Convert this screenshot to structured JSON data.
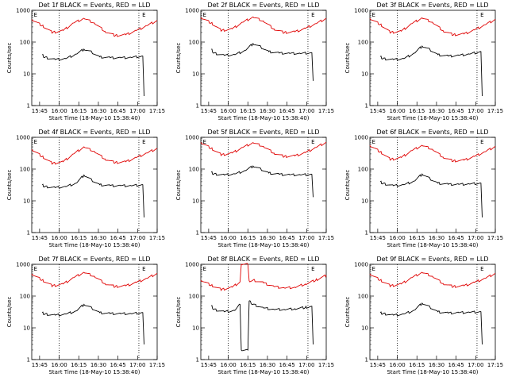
{
  "chart_data": [
    {
      "type": "line",
      "title": "Det 1f BLACK = Events, RED = LLD",
      "xlabel": "Start Time (18-May-10 15:38:40)",
      "ylabel": "Counts/sec",
      "yscale": "log",
      "ylim": [
        1,
        1000
      ],
      "xticks": [
        "15:45",
        "16:00",
        "16:15",
        "16:30",
        "16:45",
        "17:00",
        "17:15"
      ],
      "yticks": [
        "1",
        "10",
        "100",
        "1000"
      ],
      "marker": "E",
      "vlines_min": [
        21,
        82
      ],
      "series": [
        {
          "name": "RED = LLD",
          "color": "#e00000",
          "x": [
            0,
            8,
            16,
            24,
            32,
            40,
            48,
            56,
            64,
            72,
            80,
            88,
            96
          ],
          "y": [
            520,
            330,
            200,
            230,
            400,
            560,
            400,
            220,
            160,
            170,
            230,
            330,
            480
          ]
        },
        {
          "name": "BLACK = Events",
          "color": "#000000",
          "x": [
            8,
            10,
            18,
            26,
            34,
            40,
            46,
            52,
            60,
            68,
            76,
            85,
            86
          ],
          "y": [
            40,
            33,
            28,
            30,
            42,
            60,
            48,
            34,
            32,
            32,
            33,
            36,
            2
          ]
        }
      ]
    },
    {
      "type": "line",
      "title": "Det 2f BLACK = Events, RED = LLD",
      "xlabel": "Start Time (18-May-10 15:38:40)",
      "ylabel": "Counts/sec",
      "yscale": "log",
      "ylim": [
        1,
        1000
      ],
      "xticks": [
        "15:45",
        "16:00",
        "16:15",
        "16:30",
        "16:45",
        "17:00",
        "17:15"
      ],
      "yticks": [
        "1",
        "10",
        "100",
        "1000"
      ],
      "marker": "E",
      "vlines_min": [
        21,
        82
      ],
      "series": [
        {
          "name": "RED = LLD",
          "color": "#e00000",
          "x": [
            0,
            8,
            16,
            24,
            32,
            40,
            48,
            56,
            64,
            72,
            80,
            88,
            96
          ],
          "y": [
            600,
            400,
            230,
            260,
            420,
            620,
            460,
            260,
            200,
            210,
            270,
            380,
            560
          ]
        },
        {
          "name": "BLACK = Events",
          "color": "#000000",
          "x": [
            8,
            10,
            18,
            26,
            34,
            40,
            46,
            52,
            60,
            68,
            76,
            85,
            86
          ],
          "y": [
            60,
            45,
            38,
            40,
            55,
            90,
            70,
            50,
            45,
            44,
            44,
            46,
            6
          ]
        }
      ]
    },
    {
      "type": "line",
      "title": "Det 3f BLACK = Events, RED = LLD",
      "xlabel": "Start Time (18-May-10 15:38:40)",
      "ylabel": "Counts/sec",
      "yscale": "log",
      "ylim": [
        1,
        1000
      ],
      "xticks": [
        "15:45",
        "16:00",
        "16:15",
        "16:30",
        "16:45",
        "17:00",
        "17:15"
      ],
      "yticks": [
        "1",
        "10",
        "100",
        "1000"
      ],
      "marker": "E",
      "vlines_min": [
        21,
        82
      ],
      "series": [
        {
          "name": "RED = LLD",
          "color": "#e00000",
          "x": [
            0,
            8,
            16,
            24,
            32,
            40,
            48,
            56,
            64,
            72,
            80,
            88,
            96
          ],
          "y": [
            560,
            360,
            200,
            220,
            380,
            580,
            420,
            230,
            170,
            180,
            240,
            350,
            520
          ]
        },
        {
          "name": "BLACK = Events",
          "color": "#000000",
          "x": [
            8,
            10,
            18,
            26,
            34,
            40,
            46,
            52,
            60,
            68,
            76,
            85,
            86
          ],
          "y": [
            35,
            30,
            28,
            30,
            45,
            75,
            58,
            40,
            36,
            38,
            42,
            50,
            2
          ]
        }
      ]
    },
    {
      "type": "line",
      "title": "Det 4f BLACK = Events, RED = LLD",
      "xlabel": "Start Time (18-May-10 15:38:40)",
      "ylabel": "Counts/sec",
      "yscale": "log",
      "ylim": [
        1,
        1000
      ],
      "xticks": [
        "15:45",
        "16:00",
        "16:15",
        "16:30",
        "16:45",
        "17:00",
        "17:15"
      ],
      "yticks": [
        "1",
        "10",
        "100",
        "1000"
      ],
      "marker": "E",
      "vlines_min": [
        21,
        82
      ],
      "series": [
        {
          "name": "RED = LLD",
          "color": "#e00000",
          "x": [
            0,
            8,
            16,
            24,
            32,
            40,
            48,
            56,
            64,
            72,
            80,
            88,
            96
          ],
          "y": [
            420,
            250,
            150,
            170,
            300,
            500,
            360,
            210,
            160,
            170,
            230,
            320,
            450
          ]
        },
        {
          "name": "BLACK = Events",
          "color": "#000000",
          "x": [
            8,
            10,
            18,
            26,
            34,
            40,
            46,
            52,
            60,
            68,
            76,
            85,
            86
          ],
          "y": [
            32,
            28,
            26,
            28,
            36,
            65,
            45,
            32,
            30,
            30,
            30,
            32,
            3
          ]
        }
      ]
    },
    {
      "type": "line",
      "title": "Det 5f BLACK = Events, RED = LLD",
      "xlabel": "Start Time (18-May-10 15:38:40)",
      "ylabel": "Counts/sec",
      "yscale": "log",
      "ylim": [
        1,
        1000
      ],
      "xticks": [
        "15:45",
        "16:00",
        "16:15",
        "16:30",
        "16:45",
        "17:00",
        "17:15"
      ],
      "yticks": [
        "1",
        "10",
        "100",
        "1000"
      ],
      "marker": "E",
      "vlines_min": [
        21,
        82
      ],
      "series": [
        {
          "name": "RED = LLD",
          "color": "#e00000",
          "x": [
            0,
            8,
            16,
            24,
            32,
            40,
            48,
            56,
            64,
            72,
            80,
            88,
            96
          ],
          "y": [
            700,
            450,
            280,
            320,
            480,
            680,
            520,
            320,
            250,
            260,
            330,
            480,
            700
          ]
        },
        {
          "name": "BLACK = Events",
          "color": "#000000",
          "x": [
            8,
            10,
            18,
            26,
            34,
            40,
            46,
            52,
            60,
            68,
            76,
            85,
            86
          ],
          "y": [
            80,
            70,
            65,
            70,
            90,
            125,
            100,
            75,
            68,
            66,
            66,
            68,
            13
          ]
        }
      ]
    },
    {
      "type": "line",
      "title": "Det 6f BLACK = Events, RED = LLD",
      "xlabel": "Start Time (18-May-10 15:38:40)",
      "ylabel": "Counts/sec",
      "yscale": "log",
      "ylim": [
        1,
        1000
      ],
      "xticks": [
        "15:45",
        "16:00",
        "16:15",
        "16:30",
        "16:45",
        "17:00",
        "17:15"
      ],
      "yticks": [
        "1",
        "10",
        "100",
        "1000"
      ],
      "marker": "E",
      "vlines_min": [
        21,
        82
      ],
      "series": [
        {
          "name": "RED = LLD",
          "color": "#e00000",
          "x": [
            0,
            8,
            16,
            24,
            32,
            40,
            48,
            56,
            64,
            72,
            80,
            88,
            96
          ],
          "y": [
            560,
            350,
            200,
            230,
            380,
            560,
            420,
            240,
            180,
            190,
            250,
            350,
            520
          ]
        },
        {
          "name": "BLACK = Events",
          "color": "#000000",
          "x": [
            8,
            10,
            18,
            26,
            34,
            40,
            46,
            52,
            60,
            68,
            76,
            85,
            86
          ],
          "y": [
            40,
            35,
            30,
            32,
            42,
            70,
            50,
            36,
            33,
            33,
            34,
            36,
            3
          ]
        }
      ]
    },
    {
      "type": "line",
      "title": "Det 7f BLACK = Events, RED = LLD",
      "xlabel": "Start Time (18-May-10 15:38:40)",
      "ylabel": "Counts/sec",
      "yscale": "log",
      "ylim": [
        1,
        1000
      ],
      "xticks": [
        "15:45",
        "16:00",
        "16:15",
        "16:30",
        "16:45",
        "17:00",
        "17:15"
      ],
      "yticks": [
        "1",
        "10",
        "100",
        "1000"
      ],
      "marker": "E",
      "vlines_min": [
        21,
        82
      ],
      "series": [
        {
          "name": "RED = LLD",
          "color": "#e00000",
          "x": [
            0,
            8,
            16,
            24,
            32,
            40,
            48,
            56,
            64,
            72,
            80,
            88,
            96
          ],
          "y": [
            500,
            320,
            210,
            240,
            380,
            560,
            420,
            250,
            200,
            210,
            270,
            360,
            520
          ]
        },
        {
          "name": "BLACK = Events",
          "color": "#000000",
          "x": [
            8,
            10,
            18,
            26,
            34,
            40,
            46,
            52,
            60,
            68,
            76,
            85,
            86
          ],
          "y": [
            30,
            27,
            25,
            27,
            34,
            55,
            42,
            30,
            28,
            28,
            28,
            30,
            3
          ]
        }
      ]
    },
    {
      "type": "line",
      "title": "Det 8f BLACK = Events, RED = LLD",
      "xlabel": "Start Time (18-May-10 15:38:40)",
      "ylabel": "Counts/sec",
      "yscale": "log",
      "ylim": [
        1,
        1000
      ],
      "xticks": [
        "15:45",
        "16:00",
        "16:15",
        "16:30",
        "16:45",
        "17:00",
        "17:15"
      ],
      "yticks": [
        "1",
        "10",
        "100",
        "1000"
      ],
      "marker": "E",
      "vlines_min": [
        21,
        82
      ],
      "series": [
        {
          "name": "RED = LLD",
          "color": "#e00000",
          "x": [
            0,
            8,
            16,
            24,
            30,
            31,
            36,
            37,
            40,
            48,
            56,
            64,
            72,
            80,
            88,
            96
          ],
          "y": [
            320,
            220,
            160,
            190,
            280,
            1000,
            1000,
            300,
            320,
            260,
            200,
            180,
            190,
            240,
            320,
            450
          ]
        },
        {
          "name": "BLACK = Events",
          "color": "#000000",
          "x": [
            8,
            10,
            18,
            26,
            30,
            31,
            36,
            37,
            40,
            48,
            56,
            64,
            72,
            80,
            85,
            86
          ],
          "y": [
            50,
            38,
            32,
            35,
            55,
            2,
            2,
            70,
            55,
            42,
            38,
            38,
            40,
            44,
            48,
            3
          ]
        }
      ]
    },
    {
      "type": "line",
      "title": "Det 9f BLACK = Events, RED = LLD",
      "xlabel": "Start Time (18-May-10 15:38:40)",
      "ylabel": "Counts/sec",
      "yscale": "log",
      "ylim": [
        1,
        1000
      ],
      "xticks": [
        "15:45",
        "16:00",
        "16:15",
        "16:30",
        "16:45",
        "17:00",
        "17:15"
      ],
      "yticks": [
        "1",
        "10",
        "100",
        "1000"
      ],
      "marker": "E",
      "vlines_min": [
        21,
        82
      ],
      "series": [
        {
          "name": "RED = LLD",
          "color": "#e00000",
          "x": [
            0,
            8,
            16,
            24,
            32,
            40,
            48,
            56,
            64,
            72,
            80,
            88,
            96
          ],
          "y": [
            500,
            320,
            210,
            240,
            380,
            560,
            420,
            250,
            200,
            210,
            270,
            360,
            520
          ]
        },
        {
          "name": "BLACK = Events",
          "color": "#000000",
          "x": [
            8,
            10,
            18,
            26,
            34,
            40,
            46,
            52,
            60,
            68,
            76,
            85,
            86
          ],
          "y": [
            30,
            28,
            25,
            27,
            36,
            60,
            45,
            32,
            29,
            30,
            31,
            32,
            3
          ]
        }
      ]
    }
  ]
}
